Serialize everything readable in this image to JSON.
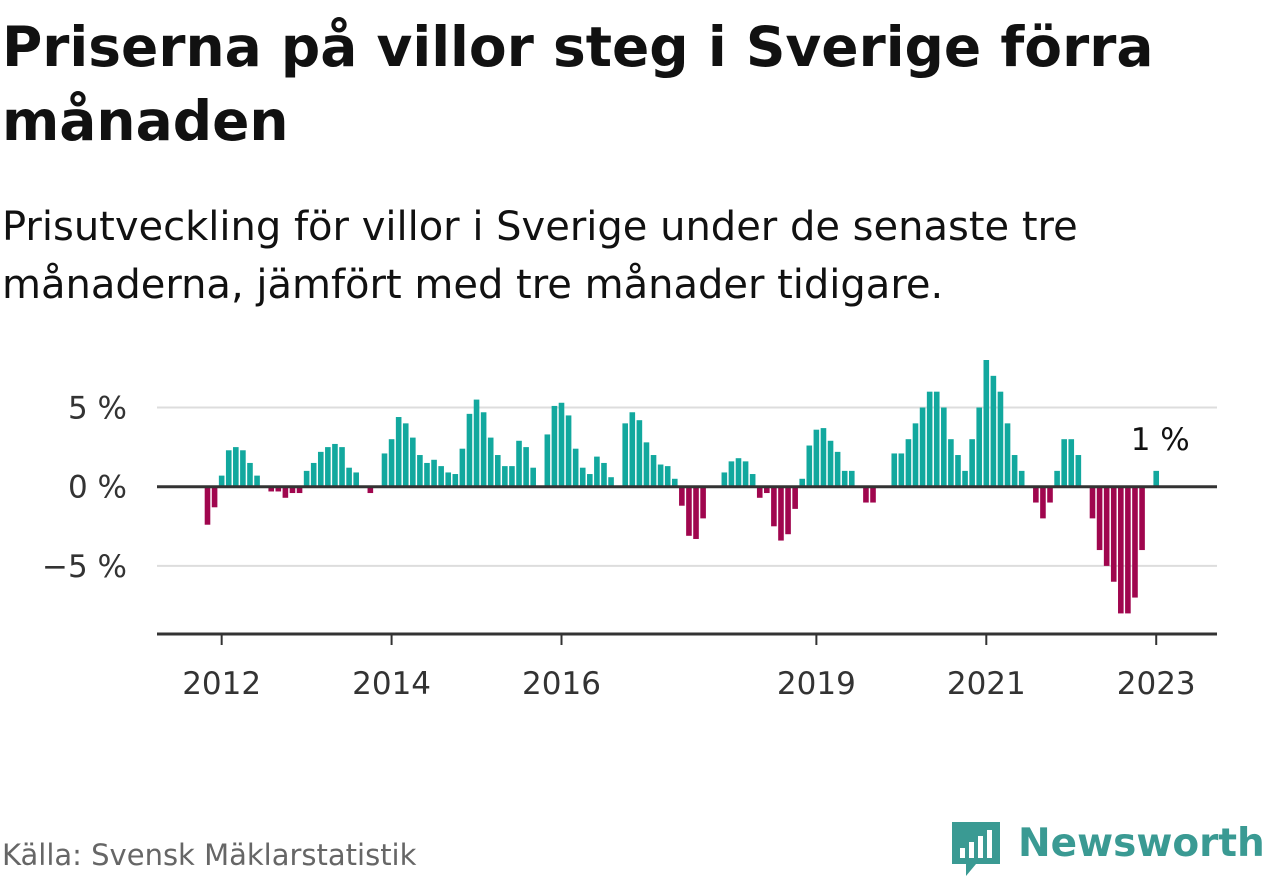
{
  "title": "Priserna på villor steg i Sverige förra månaden",
  "subtitle": "Prisutveckling för villor i Sverige under de senaste tre månaderna, jämfört med tre månader tidigare.",
  "source": "Källa: Svensk Mäklarstatistik",
  "brand": {
    "name": "Newsworthy",
    "icon": "newsworthy-logo-icon",
    "color": "#3a9a93"
  },
  "colors": {
    "positive": "#12a89e",
    "negative": "#a0064e",
    "grid": "#dddddd",
    "axis": "#333333"
  },
  "chart_data": {
    "type": "bar",
    "start": "2011-11",
    "y_unit": "%",
    "ylim": [
      -9.3,
      8.0
    ],
    "yticks": [
      {
        "value": 5,
        "label": "5 %"
      },
      {
        "value": 0,
        "label": "0 %"
      },
      {
        "value": -5,
        "label": "−5 %"
      }
    ],
    "xticks": [
      "2012",
      "2014",
      "2016",
      "2019",
      "2021",
      "2023"
    ],
    "grid": true,
    "annotation": {
      "label": "1 %",
      "target": "last"
    },
    "values": [
      -2.4,
      -1.3,
      0.7,
      2.3,
      2.5,
      2.3,
      1.5,
      0.7,
      0,
      -0.3,
      -0.3,
      -0.7,
      -0.4,
      -0.4,
      1.0,
      1.5,
      2.2,
      2.5,
      2.7,
      2.5,
      1.2,
      0.9,
      0,
      -0.4,
      0,
      2.1,
      3.0,
      4.4,
      4.0,
      3.1,
      2.0,
      1.5,
      1.7,
      1.3,
      0.9,
      0.8,
      2.4,
      4.6,
      5.5,
      4.7,
      3.1,
      2.0,
      1.3,
      1.3,
      2.9,
      2.5,
      1.2,
      0,
      3.3,
      5.1,
      5.3,
      4.5,
      2.4,
      1.2,
      0.8,
      1.9,
      1.5,
      0.6,
      0,
      4.0,
      4.7,
      4.2,
      2.8,
      2.0,
      1.4,
      1.3,
      0.5,
      -1.2,
      -3.1,
      -3.3,
      -2.0,
      0,
      0,
      0.9,
      1.6,
      1.8,
      1.6,
      0.8,
      -0.7,
      -0.4,
      -2.5,
      -3.4,
      -3.0,
      -1.4,
      0.5,
      2.6,
      3.6,
      3.7,
      2.9,
      2.2,
      1.0,
      1.0,
      0,
      -1.0,
      -1.0,
      0,
      0,
      2.1,
      2.1,
      3.0,
      4.0,
      5.0,
      6.0,
      6.0,
      5.0,
      3.0,
      2.0,
      1.0,
      3.0,
      5.0,
      8.0,
      7.0,
      6.0,
      4.0,
      2.0,
      1.0,
      0,
      -1.0,
      -2.0,
      -1.0,
      1.0,
      3.0,
      3.0,
      2.0,
      0,
      -2.0,
      -4.0,
      -5.0,
      -6.0,
      -8.0,
      -8.0,
      -7.0,
      -4.0,
      0,
      1.0
    ]
  }
}
